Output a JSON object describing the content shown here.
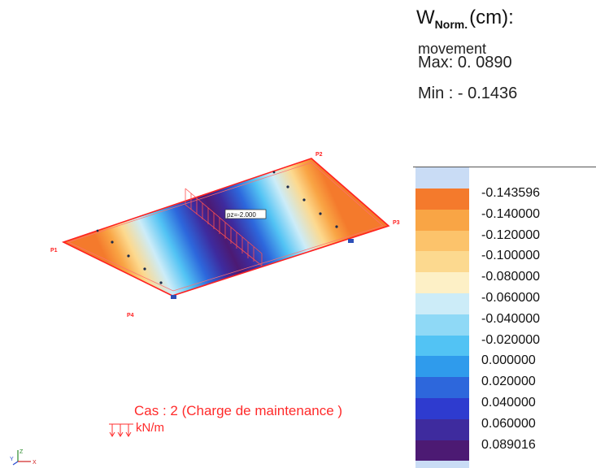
{
  "header": {
    "title_main": "W",
    "title_sub": "Norm.",
    "title_unit": "(cm):",
    "subtitle": "movement",
    "max_text": "Max: 0. 0890",
    "min_text": "Min : - 0.1436"
  },
  "legend": {
    "entries": [
      {
        "label": "-0.143596",
        "color": "#f47a2c"
      },
      {
        "label": "-0.140000",
        "color": "#f9a545"
      },
      {
        "label": "-0.120000",
        "color": "#fcc36b"
      },
      {
        "label": "-0.100000",
        "color": "#fcd98f"
      },
      {
        "label": "-0.080000",
        "color": "#fdf0c6"
      },
      {
        "label": "-0.060000",
        "color": "#ccecf8"
      },
      {
        "label": "-0.040000",
        "color": "#8fd9f6"
      },
      {
        "label": "-0.020000",
        "color": "#52c3f4"
      },
      {
        "label": "0.000000",
        "color": "#2f9bec"
      },
      {
        "label": "0.020000",
        "color": "#2d67dc"
      },
      {
        "label": "0.040000",
        "color": "#2e3bcf"
      },
      {
        "label": "0.060000",
        "color": "#3e2b9e"
      },
      {
        "label": "0.089016",
        "color": "#4c1a73"
      }
    ],
    "cap_color": "#c9dcf5"
  },
  "model": {
    "points": [
      "P1",
      "P2",
      "P3",
      "P4"
    ],
    "load_value": "pz=-2.000",
    "edge_color": "#ff2020"
  },
  "case_label": "Cas : 2 (Charge de maintenance )",
  "unit_label": "kN/m",
  "axes": {
    "x": "X",
    "y": "Y",
    "z": "Z"
  }
}
